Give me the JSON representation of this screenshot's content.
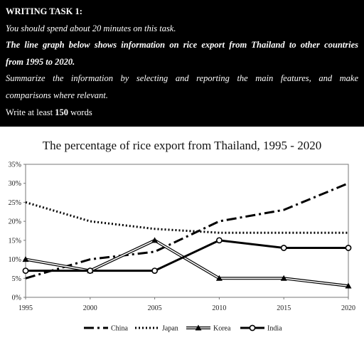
{
  "task": {
    "heading": "WRITING TASK 1:",
    "instruction": "You should spend about 20 minutes on this task.",
    "prompt_line1": "The line graph below shows information on rice export from Thailand to other countries",
    "prompt_line2": "from 1995 to 2020.",
    "summary_line1": "Summarize the information by selecting and reporting the main features, and make",
    "summary_line2": "comparisons where relevant.",
    "words_prefix": "Write at least ",
    "words_count": "150",
    "words_suffix": " words"
  },
  "chart_data": {
    "type": "line",
    "title": "The percentage of rice export from Thailand, 1995 - 2020",
    "xlabel": "",
    "ylabel": "",
    "x": [
      1995,
      2000,
      2005,
      2010,
      2015,
      2020
    ],
    "x_tick_labels": [
      "1995",
      "2000",
      "2005",
      "2010",
      "2015",
      "2020"
    ],
    "ylim": [
      0,
      35
    ],
    "y_tick_labels": [
      "0%",
      "5%",
      "10%",
      "15%",
      "20%",
      "25%",
      "30%",
      "35%"
    ],
    "grid": false,
    "legend_position": "bottom",
    "series": [
      {
        "name": "China",
        "values": [
          5,
          10,
          12,
          20,
          23,
          30
        ],
        "style": "dash-dot",
        "color": "#000000"
      },
      {
        "name": "Japan",
        "values": [
          25,
          20,
          18,
          17,
          17,
          17
        ],
        "style": "dotted",
        "color": "#000000"
      },
      {
        "name": "Korea",
        "values": [
          10,
          7,
          15,
          5,
          5,
          3
        ],
        "style": "double-line-triangle",
        "color": "#000000"
      },
      {
        "name": "India",
        "values": [
          7,
          7,
          7,
          15,
          13,
          13
        ],
        "style": "solid-circle",
        "color": "#000000"
      }
    ]
  }
}
